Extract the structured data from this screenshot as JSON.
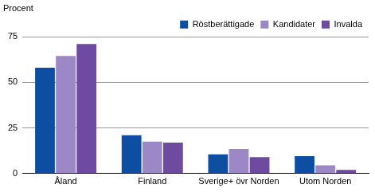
{
  "chart_data": {
    "type": "bar",
    "y_label": "Procent",
    "categories": [
      "Åland",
      "Finland",
      "Sverige+ övr Norden",
      "Utom Norden"
    ],
    "series": [
      {
        "name": "Röstberättigade",
        "color": "#0d4ea3",
        "values": [
          58,
          21,
          10.5,
          9.5
        ]
      },
      {
        "name": "Kandidater",
        "color": "#9c88c6",
        "values": [
          64.5,
          17.5,
          13.5,
          4.5
        ]
      },
      {
        "name": "Invalda",
        "color": "#6e4ba1",
        "values": [
          71,
          17,
          9,
          2
        ]
      }
    ],
    "ylim": [
      0,
      75
    ],
    "yticks": [
      0,
      25,
      50,
      75
    ],
    "grid": true,
    "legend": "upper right"
  }
}
